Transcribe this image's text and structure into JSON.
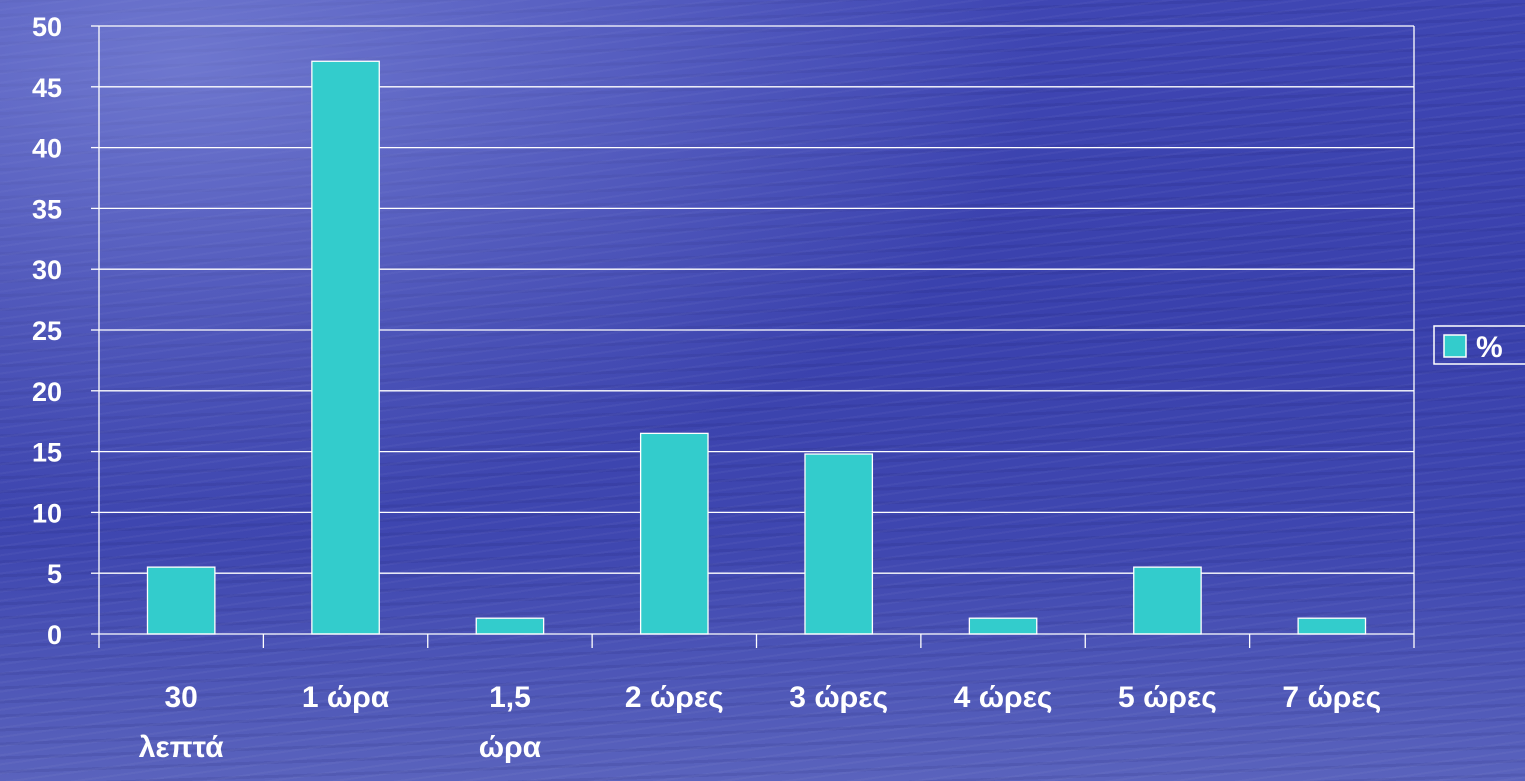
{
  "chart_data": {
    "type": "bar",
    "categories": [
      [
        "30",
        "λεπτά"
      ],
      [
        "1 ώρα"
      ],
      [
        "1,5",
        "ώρα"
      ],
      [
        "2 ώρες"
      ],
      [
        "3 ώρες"
      ],
      [
        "4 ώρες"
      ],
      [
        "5 ώρες"
      ],
      [
        "7 ώρες"
      ]
    ],
    "series": [
      {
        "name": "%",
        "values": [
          5.5,
          47.1,
          1.3,
          16.5,
          14.8,
          1.3,
          5.5,
          1.3
        ]
      }
    ],
    "ylim": [
      0,
      50
    ],
    "yticks": [
      "0",
      "5",
      "10",
      "15",
      "20",
      "25",
      "30",
      "35",
      "40",
      "45",
      "50"
    ],
    "grid": true,
    "legend": "right",
    "colors": {
      "bar": "#33cccc",
      "bar_stroke": "#ffffff",
      "grid": "#ffffff",
      "text": "#ffffff"
    }
  }
}
